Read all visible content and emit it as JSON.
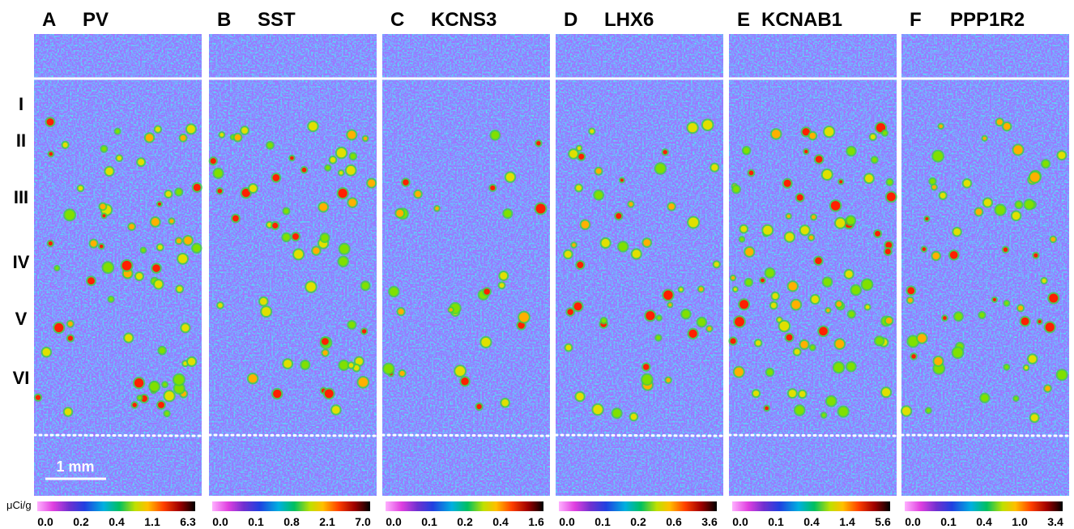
{
  "panels": [
    {
      "letter": "A",
      "gene": "PV",
      "scale_ticks": [
        "0.0",
        "0.2",
        "0.4",
        "1.1",
        "6.3"
      ]
    },
    {
      "letter": "B",
      "gene": "SST",
      "scale_ticks": [
        "0.0",
        "0.1",
        "0.8",
        "2.1",
        "7.0"
      ]
    },
    {
      "letter": "C",
      "gene": "KCNS3",
      "scale_ticks": [
        "0.0",
        "0.1",
        "0.2",
        "0.4",
        "1.6"
      ]
    },
    {
      "letter": "D",
      "gene": "LHX6",
      "scale_ticks": [
        "0.0",
        "0.1",
        "0.2",
        "0.6",
        "3.6"
      ]
    },
    {
      "letter": "E",
      "gene": "KCNAB1",
      "scale_ticks": [
        "0.0",
        "0.1",
        "0.4",
        "1.4",
        "5.6"
      ]
    },
    {
      "letter": "F",
      "gene": "PPP1R2",
      "scale_ticks": [
        "0.0",
        "0.1",
        "0.4",
        "1.0",
        "3.4"
      ]
    }
  ],
  "layers": [
    "I",
    "II",
    "III",
    "IV",
    "V",
    "VI"
  ],
  "scale_bar": "1 mm",
  "unit": "μCi/g"
}
